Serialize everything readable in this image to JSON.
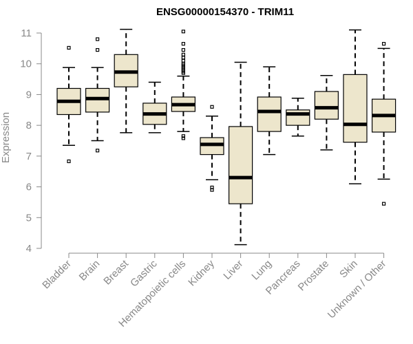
{
  "chart_data": {
    "type": "boxplot",
    "title": "ENSG00000154370 - TRIM11",
    "xlabel": "",
    "ylabel": "Expression",
    "ylim": [
      4,
      11
    ],
    "yticks": [
      4,
      5,
      6,
      7,
      8,
      9,
      10,
      11
    ],
    "grid": false,
    "box_color": "#ede6cc",
    "categories": [
      "Bladder",
      "Brain",
      "Breast",
      "Gastric",
      "Hematopoietic cells",
      "Kidney",
      "Liver",
      "Lung",
      "Pancreas",
      "Prostate",
      "Skin",
      "Unknown / Other"
    ],
    "boxes": [
      {
        "name": "Bladder",
        "whisker_low": 7.35,
        "q1": 8.35,
        "median": 8.78,
        "q3": 9.2,
        "whisker_high": 9.88,
        "outliers": [
          10.52,
          6.83
        ]
      },
      {
        "name": "Brain",
        "whisker_low": 7.5,
        "q1": 8.43,
        "median": 8.87,
        "q3": 9.2,
        "whisker_high": 9.88,
        "outliers": [
          10.8,
          10.45,
          7.18
        ]
      },
      {
        "name": "Breast",
        "whisker_low": 7.76,
        "q1": 9.25,
        "median": 9.73,
        "q3": 10.3,
        "whisker_high": 11.12,
        "outliers": []
      },
      {
        "name": "Gastric",
        "whisker_low": 7.76,
        "q1": 8.03,
        "median": 8.37,
        "q3": 8.72,
        "whisker_high": 9.4,
        "outliers": []
      },
      {
        "name": "Hematopoietic cells",
        "whisker_low": 7.8,
        "q1": 8.45,
        "median": 8.67,
        "q3": 8.92,
        "whisker_high": 9.6,
        "outliers": [
          11.05,
          10.65,
          10.45,
          10.3,
          10.2,
          10.1,
          10.0,
          9.95,
          9.9,
          9.85,
          9.8,
          9.75,
          9.7,
          7.65,
          7.58
        ]
      },
      {
        "name": "Kidney",
        "whisker_low": 6.23,
        "q1": 7.05,
        "median": 7.38,
        "q3": 7.6,
        "whisker_high": 8.3,
        "outliers": [
          8.6,
          5.98,
          5.9
        ]
      },
      {
        "name": "Liver",
        "whisker_low": 4.12,
        "q1": 5.45,
        "median": 6.3,
        "q3": 7.96,
        "whisker_high": 10.05,
        "outliers": []
      },
      {
        "name": "Lung",
        "whisker_low": 7.05,
        "q1": 7.8,
        "median": 8.45,
        "q3": 8.92,
        "whisker_high": 9.9,
        "outliers": []
      },
      {
        "name": "Pancreas",
        "whisker_low": 7.65,
        "q1": 8.0,
        "median": 8.37,
        "q3": 8.5,
        "whisker_high": 8.88,
        "outliers": []
      },
      {
        "name": "Prostate",
        "whisker_low": 7.2,
        "q1": 8.2,
        "median": 8.57,
        "q3": 9.1,
        "whisker_high": 9.62,
        "outliers": []
      },
      {
        "name": "Skin",
        "whisker_low": 6.1,
        "q1": 7.45,
        "median": 8.03,
        "q3": 9.65,
        "whisker_high": 11.1,
        "outliers": []
      },
      {
        "name": "Unknown / Other",
        "whisker_low": 6.25,
        "q1": 7.78,
        "median": 8.32,
        "q3": 8.85,
        "whisker_high": 10.5,
        "outliers": [
          10.65,
          5.45
        ]
      }
    ]
  }
}
